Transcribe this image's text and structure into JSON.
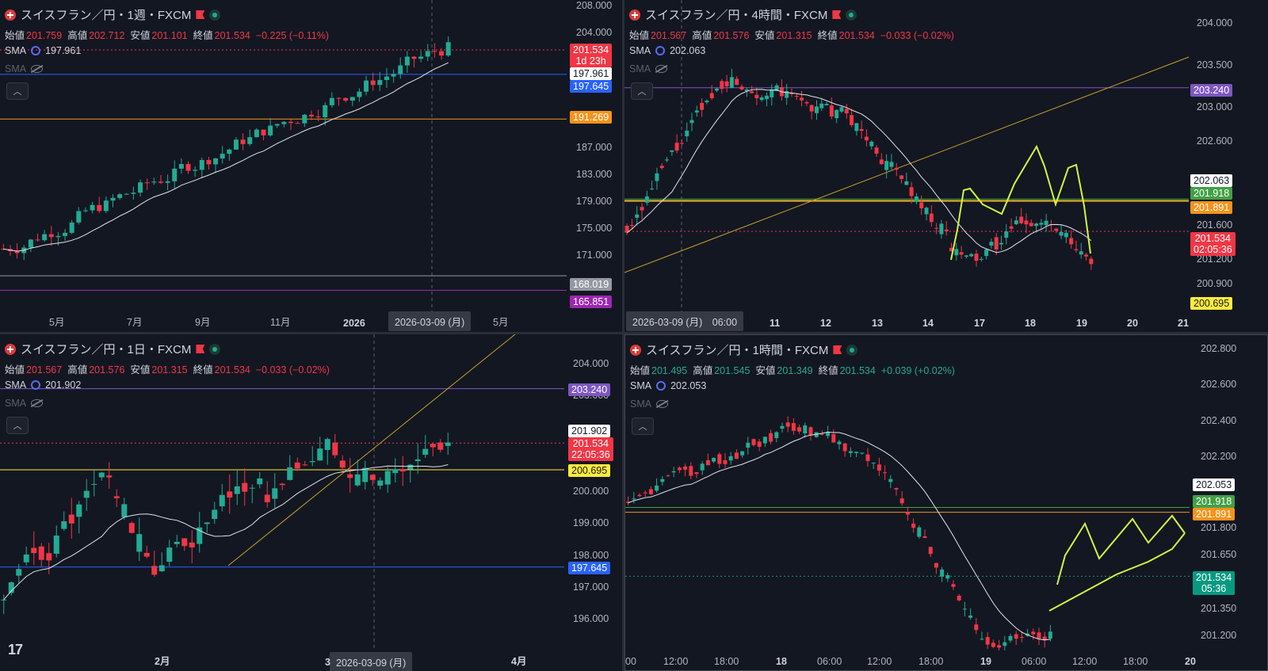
{
  "panels": [
    {
      "title": "スイスフラン／円・1週・FXCM",
      "ohlc": {
        "o_label": "始値",
        "o": "201.759",
        "h_label": "高値",
        "h": "202.712",
        "l_label": "安値",
        "l": "201.101",
        "c_label": "終値",
        "c": "201.534",
        "chg": "−0.225 (−0.11%)",
        "dir": "down"
      },
      "sma_label": "SMA",
      "sma_value": "197.961",
      "sma2_label": "SMA",
      "y_ticks": [
        "208.000",
        "204.000",
        "187.000",
        "183.000",
        "179.000",
        "175.000",
        "171.000"
      ],
      "x_ticks": [
        "5月",
        "7月",
        "9月",
        "11月",
        "2026",
        "5月"
      ],
      "crosshair_date": "2026-03-09 (月)",
      "price_tags": [
        {
          "text": "201.534",
          "sub": "1d 23h",
          "color": "#f23645"
        },
        {
          "text": "197.961",
          "color": "#ffffff"
        },
        {
          "text": "197.645",
          "color": "#2962ff"
        },
        {
          "text": "191.269",
          "color": "#f7931a"
        },
        {
          "text": "168.019",
          "color": "#9598a1"
        },
        {
          "text": "165.851",
          "color": "#9c27b0"
        }
      ]
    },
    {
      "title": "スイスフラン／円・4時間・FXCM",
      "ohlc": {
        "o_label": "始値",
        "o": "201.567",
        "h_label": "高値",
        "h": "201.576",
        "l_label": "安値",
        "l": "201.315",
        "c_label": "終値",
        "c": "201.534",
        "chg": "−0.033 (−0.02%)",
        "dir": "down"
      },
      "sma_label": "SMA",
      "sma_value": "202.063",
      "sma2_label": "SMA",
      "y_ticks": [
        "204.000",
        "203.500",
        "203.000",
        "202.600",
        "201.600",
        "201.200",
        "200.900"
      ],
      "x_ticks": [
        "11",
        "12",
        "13",
        "14",
        "17",
        "18",
        "19",
        "20",
        "21"
      ],
      "crosshair_date": "2026-03-09 (月)　06:00",
      "price_tags": [
        {
          "text": "203.240",
          "color": "#7e57c2"
        },
        {
          "text": "202.063",
          "color": "#ffffff"
        },
        {
          "text": "201.918",
          "color": "#43a047"
        },
        {
          "text": "201.891",
          "color": "#f7931a"
        },
        {
          "text": "201.534",
          "sub": "02:05:36",
          "color": "#f23645"
        },
        {
          "text": "200.695",
          "color": "#ffeb3b"
        }
      ]
    },
    {
      "title": "スイスフラン／円・1日・FXCM",
      "ohlc": {
        "o_label": "始値",
        "o": "201.567",
        "h_label": "高値",
        "h": "201.576",
        "l_label": "安値",
        "l": "201.315",
        "c_label": "終値",
        "c": "201.534",
        "chg": "−0.033 (−0.02%)",
        "dir": "down"
      },
      "sma_label": "SMA",
      "sma_value": "201.902",
      "sma2_label": "SMA",
      "y_ticks": [
        "204.000",
        "203.000",
        "200.000",
        "199.000",
        "198.000",
        "197.000",
        "196.000"
      ],
      "x_ticks": [
        "2月",
        "3",
        "4月"
      ],
      "crosshair_date": "2026-03-09 (月)",
      "price_tags": [
        {
          "text": "203.240",
          "color": "#7e57c2"
        },
        {
          "text": "201.902",
          "color": "#ffffff"
        },
        {
          "text": "201.534",
          "sub": "22:05:36",
          "color": "#f23645"
        },
        {
          "text": "200.695",
          "color": "#ffeb3b"
        },
        {
          "text": "197.645",
          "color": "#2962ff"
        }
      ]
    },
    {
      "title": "スイスフラン／円・1時間・FXCM",
      "ohlc": {
        "o_label": "始値",
        "o": "201.495",
        "h_label": "高値",
        "h": "201.545",
        "l_label": "安値",
        "l": "201.349",
        "c_label": "終値",
        "c": "201.534",
        "chg": "+0.039 (+0.02%)",
        "dir": "up"
      },
      "sma_label": "SMA",
      "sma_value": "202.053",
      "sma2_label": "SMA",
      "y_ticks": [
        "202.800",
        "202.600",
        "202.400",
        "202.200",
        "201.800",
        "201.650",
        "201.350",
        "201.200"
      ],
      "x_ticks": [
        "00",
        "12:00",
        "18:00",
        "18",
        "06:00",
        "12:00",
        "18:00",
        "19",
        "06:00",
        "12:00",
        "18:00",
        "20"
      ],
      "price_tags": [
        {
          "text": "202.053",
          "color": "#ffffff"
        },
        {
          "text": "201.918",
          "color": "#43a047"
        },
        {
          "text": "201.891",
          "color": "#f7931a"
        },
        {
          "text": "201.534",
          "sub": "05:36",
          "color": "#089981"
        }
      ]
    }
  ],
  "colors": {
    "up": "#22ab94",
    "down": "#f23645",
    "bg": "#131722",
    "grid": "#2a2e39",
    "sma": "#e0e3eb",
    "drawing": "#d4f542"
  },
  "brand": "17"
}
